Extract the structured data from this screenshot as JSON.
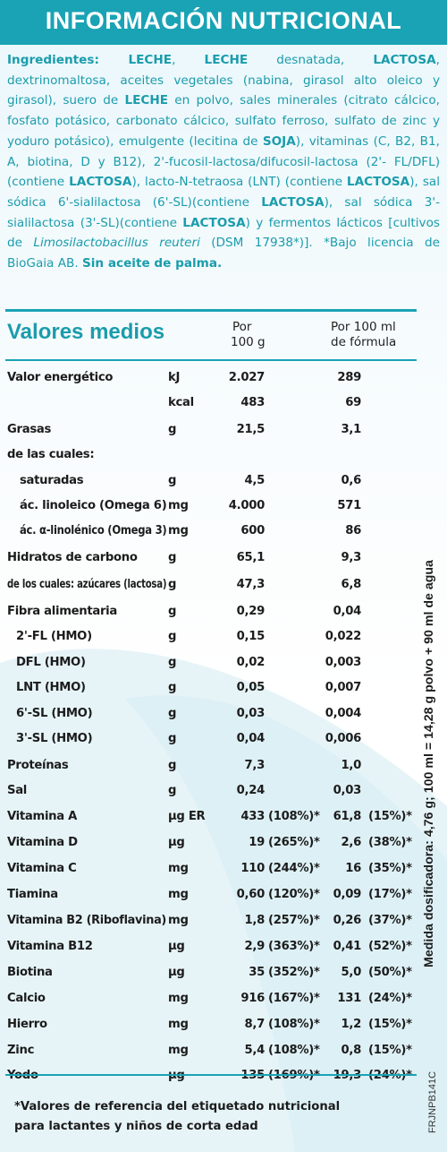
{
  "header": {
    "title": "INFORMACIÓN NUTRICIONAL"
  },
  "ingredients": [
    {
      "t": "Ingredientes: ",
      "b": true
    },
    {
      "t": "LECHE",
      "b": true
    },
    {
      "t": ", "
    },
    {
      "t": "LECHE",
      "b": true
    },
    {
      "t": " desnatada, "
    },
    {
      "t": "LACTOSA",
      "b": true
    },
    {
      "t": ", dextrinomaltosa, aceites vegetales (nabina, girasol alto oleico y girasol), suero de "
    },
    {
      "t": "LECHE",
      "b": true
    },
    {
      "t": " en polvo, sales minerales (citrato cálcico, fosfato potásico, carbonato cálcico, sulfato ferroso, sulfato de zinc y yoduro potásico), emulgente (lecitina de "
    },
    {
      "t": "SOJA",
      "b": true
    },
    {
      "t": "), vitaminas (C, B2, B1, A, biotina, D y B12), 2'-fucosil-lactosa/difucosil-lactosa (2'- FL/DFL) (contiene "
    },
    {
      "t": "LACTOSA",
      "b": true
    },
    {
      "t": "), lacto-N-tetraosa (LNT) (contiene "
    },
    {
      "t": "LACTOSA",
      "b": true
    },
    {
      "t": "), sal sódica 6'-sialilactosa (6'-SL)(contiene "
    },
    {
      "t": "LACTOSA",
      "b": true
    },
    {
      "t": "), sal sódica 3'-sialilactosa (3'-SL)(contiene "
    },
    {
      "t": "LACTOSA",
      "b": true
    },
    {
      "t": ")  y fermentos lácticos [cultivos de "
    },
    {
      "t": "Limosilactobacillus reuteri",
      "i": true
    },
    {
      "t": " (DSM 17938*)]. *Bajo licencia de BioGaia AB. "
    },
    {
      "t": "Sin aceite de palma.",
      "b": true
    }
  ],
  "table": {
    "section_title": "Valores medios",
    "col_per_100g": [
      "Por",
      "100 g"
    ],
    "col_per_100ml": [
      "Por 100 ml",
      "de fórmula"
    ],
    "rows": [
      {
        "label": "Valor energético",
        "unit": "kJ",
        "v100": "2.027",
        "pct100": "",
        "vml": "289",
        "pctml": "",
        "indent": 0
      },
      {
        "label": "",
        "unit": "kcal",
        "v100": "483",
        "pct100": "",
        "vml": "69",
        "pctml": "",
        "indent": 0
      },
      {
        "label": "Grasas",
        "unit": "g",
        "v100": "21,5",
        "pct100": "",
        "vml": "3,1",
        "pctml": "",
        "indent": 0
      },
      {
        "label": "de las cuales:",
        "unit": "",
        "v100": "",
        "pct100": "",
        "vml": "",
        "pctml": "",
        "indent": 0
      },
      {
        "label": "saturadas",
        "unit": "g",
        "v100": "4,5",
        "pct100": "",
        "vml": "0,6",
        "pctml": "",
        "indent": 1
      },
      {
        "label": "ác. linoleico (Omega 6)",
        "unit": "mg",
        "v100": "4.000",
        "pct100": "",
        "vml": "571",
        "pctml": "",
        "indent": 1
      },
      {
        "label": "ác. α-linolénico (Omega 3)",
        "unit": "mg",
        "v100": "600",
        "pct100": "",
        "vml": "86",
        "pctml": "",
        "indent": 1
      },
      {
        "label": "Hidratos de carbono",
        "unit": "g",
        "v100": "65,1",
        "pct100": "",
        "vml": "9,3",
        "pctml": "",
        "indent": 0
      },
      {
        "label": "de los cuales: azúcares (lactosa)",
        "unit": "g",
        "v100": "47,3",
        "pct100": "",
        "vml": "6,8",
        "pctml": "",
        "indent": 0
      },
      {
        "label": "Fibra alimentaria",
        "unit": "g",
        "v100": "0,29",
        "pct100": "",
        "vml": "0,04",
        "pctml": "",
        "indent": 0
      },
      {
        "label": "2'-FL (HMO)",
        "unit": "g",
        "v100": "0,15",
        "pct100": "",
        "vml": "0,022",
        "pctml": "",
        "indent": 2
      },
      {
        "label": "DFL (HMO)",
        "unit": "g",
        "v100": "0,02",
        "pct100": "",
        "vml": "0,003",
        "pctml": "",
        "indent": 2
      },
      {
        "label": "LNT (HMO)",
        "unit": "g",
        "v100": "0,05",
        "pct100": "",
        "vml": "0,007",
        "pctml": "",
        "indent": 2
      },
      {
        "label": "6'-SL (HMO)",
        "unit": "g",
        "v100": "0,03",
        "pct100": "",
        "vml": "0,004",
        "pctml": "",
        "indent": 2
      },
      {
        "label": "3'-SL (HMO)",
        "unit": "g",
        "v100": "0,04",
        "pct100": "",
        "vml": "0,006",
        "pctml": "",
        "indent": 2
      },
      {
        "label": "Proteínas",
        "unit": "g",
        "v100": "7,3",
        "pct100": "",
        "vml": "1,0",
        "pctml": "",
        "indent": 0
      },
      {
        "label": "Sal",
        "unit": "g",
        "v100": "0,24",
        "pct100": "",
        "vml": "0,03",
        "pctml": "",
        "indent": 0
      },
      {
        "label": "Vitamina A",
        "unit": "µg ER",
        "v100": "433",
        "pct100": "(108%)*",
        "vml": "61,8",
        "pctml": "(15%)*",
        "indent": 0
      },
      {
        "label": "Vitamina D",
        "unit": "µg",
        "v100": "19",
        "pct100": "(265%)*",
        "vml": "2,6",
        "pctml": "(38%)*",
        "indent": 0
      },
      {
        "label": "Vitamina C",
        "unit": "mg",
        "v100": "110",
        "pct100": "(244%)*",
        "vml": "16",
        "pctml": "(35%)*",
        "indent": 0
      },
      {
        "label": "Tiamina",
        "unit": "mg",
        "v100": "0,60",
        "pct100": "(120%)*",
        "vml": "0,09",
        "pctml": "(17%)*",
        "indent": 0
      },
      {
        "label": "Vitamina B2 (Riboflavina)",
        "unit": "mg",
        "v100": "1,8",
        "pct100": "(257%)*",
        "vml": "0,26",
        "pctml": "(37%)*",
        "indent": 0
      },
      {
        "label": "Vitamina B12",
        "unit": "µg",
        "v100": "2,9",
        "pct100": "(363%)*",
        "vml": "0,41",
        "pctml": "(52%)*",
        "indent": 0
      },
      {
        "label": "Biotina",
        "unit": "µg",
        "v100": "35",
        "pct100": "(352%)*",
        "vml": "5,0",
        "pctml": "(50%)*",
        "indent": 0
      },
      {
        "label": "Calcio",
        "unit": "mg",
        "v100": "916",
        "pct100": "(167%)*",
        "vml": "131",
        "pctml": "(24%)*",
        "indent": 0
      },
      {
        "label": "Hierro",
        "unit": "mg",
        "v100": "8,7",
        "pct100": "(108%)*",
        "vml": "1,2",
        "pctml": "(15%)*",
        "indent": 0
      },
      {
        "label": "Zinc",
        "unit": "mg",
        "v100": "5,4",
        "pct100": "(108%)*",
        "vml": "0,8",
        "pctml": "(15%)*",
        "indent": 0
      },
      {
        "label": "Yodo",
        "unit": "µg",
        "v100": "135",
        "pct100": "(169%)*",
        "vml": "19,3",
        "pctml": "(24%)*",
        "indent": 0
      }
    ]
  },
  "side_note": "Medida dosificadora: 4,76 g; 100 ml = 14,28 g polvo + 90 ml de agua",
  "product_code": "FRJNPB141C",
  "footnote": [
    "*Valores de referencia del etiquetado nutricional",
    "para lactantes y niños de corta edad"
  ],
  "colors": {
    "brand": "#1aa3b5",
    "text": "#1c1c1c",
    "ingredients_text": "#1a9cac"
  }
}
